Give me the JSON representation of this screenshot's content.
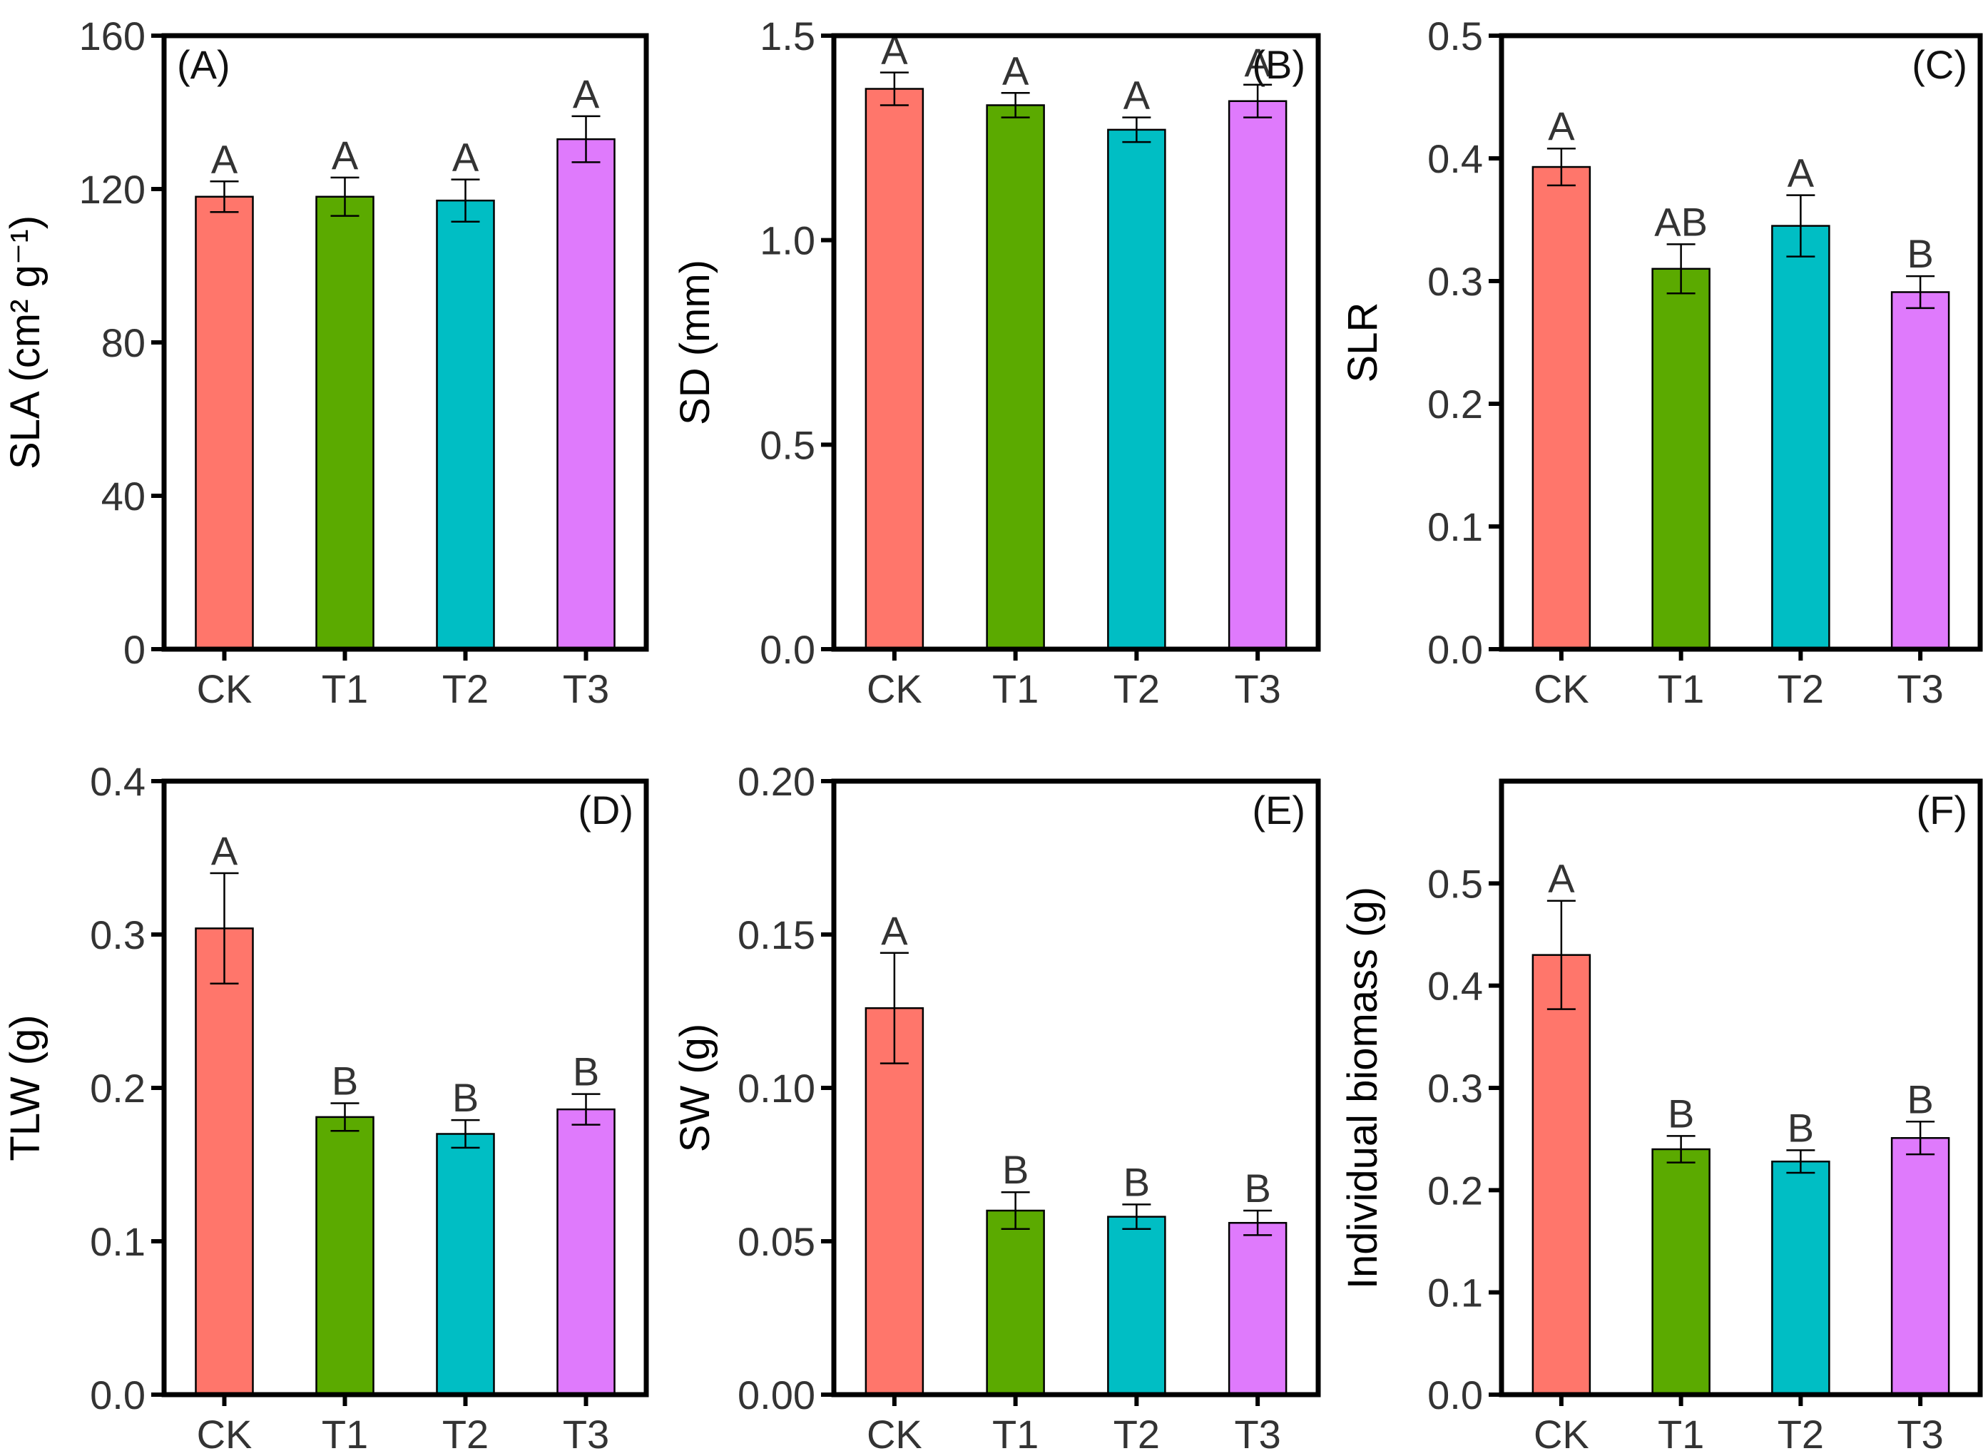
{
  "colors": {
    "CK": "#FF766B",
    "T1": "#5BAA00",
    "T2": "#00BEC4",
    "T3": "#DF7AFC"
  },
  "chart_data": [
    {
      "id": "A",
      "type": "bar",
      "panel_label": "(A)",
      "ylabel": "SLA (cm² g⁻¹)",
      "xlabel": "",
      "categories": [
        "CK",
        "T1",
        "T2",
        "T3"
      ],
      "values": [
        118,
        118,
        117,
        133
      ],
      "errors": [
        4,
        5,
        5.5,
        6
      ],
      "significance": [
        "A",
        "A",
        "A",
        "A"
      ],
      "ylim": [
        0,
        160
      ],
      "yticks": [
        0,
        40,
        80,
        120,
        160
      ],
      "ytick_labels": [
        "0",
        "40",
        "80",
        "120",
        "160"
      ],
      "tag_position": "top-left"
    },
    {
      "id": "B",
      "type": "bar",
      "panel_label": "(B)",
      "ylabel": "SD (mm)",
      "xlabel": "",
      "categories": [
        "CK",
        "T1",
        "T2",
        "T3"
      ],
      "values": [
        1.37,
        1.33,
        1.27,
        1.34
      ],
      "errors": [
        0.04,
        0.03,
        0.03,
        0.04
      ],
      "significance": [
        "A",
        "A",
        "A",
        "A"
      ],
      "ylim": [
        0,
        1.5
      ],
      "yticks": [
        0,
        0.5,
        1.0,
        1.5
      ],
      "ytick_labels": [
        "0.0",
        "0.5",
        "1.0",
        "1.5"
      ],
      "tag_position": "top-right"
    },
    {
      "id": "C",
      "type": "bar",
      "panel_label": "(C)",
      "ylabel": "SLR",
      "xlabel": "",
      "categories": [
        "CK",
        "T1",
        "T2",
        "T3"
      ],
      "values": [
        0.393,
        0.31,
        0.345,
        0.291
      ],
      "errors": [
        0.015,
        0.02,
        0.025,
        0.013
      ],
      "significance": [
        "A",
        "AB",
        "A",
        "B"
      ],
      "ylim": [
        0,
        0.5
      ],
      "yticks": [
        0,
        0.1,
        0.2,
        0.3,
        0.4,
        0.5
      ],
      "ytick_labels": [
        "0.0",
        "0.1",
        "0.2",
        "0.3",
        "0.4",
        "0.5"
      ],
      "tag_position": "top-right"
    },
    {
      "id": "D",
      "type": "bar",
      "panel_label": "(D)",
      "ylabel": "TLW (g)",
      "xlabel": "",
      "categories": [
        "CK",
        "T1",
        "T2",
        "T3"
      ],
      "values": [
        0.304,
        0.181,
        0.17,
        0.186
      ],
      "errors": [
        0.036,
        0.009,
        0.009,
        0.01
      ],
      "significance": [
        "A",
        "B",
        "B",
        "B"
      ],
      "ylim": [
        0,
        0.4
      ],
      "yticks": [
        0,
        0.1,
        0.2,
        0.3,
        0.4
      ],
      "ytick_labels": [
        "0.0",
        "0.1",
        "0.2",
        "0.3",
        "0.4"
      ],
      "tag_position": "top-right"
    },
    {
      "id": "E",
      "type": "bar",
      "panel_label": "(E)",
      "ylabel": "SW (g)",
      "xlabel": "",
      "categories": [
        "CK",
        "T1",
        "T2",
        "T3"
      ],
      "values": [
        0.126,
        0.06,
        0.058,
        0.056
      ],
      "errors": [
        0.018,
        0.006,
        0.004,
        0.004
      ],
      "significance": [
        "A",
        "B",
        "B",
        "B"
      ],
      "ylim": [
        0,
        0.2
      ],
      "yticks": [
        0,
        0.05,
        0.1,
        0.15,
        0.2
      ],
      "ytick_labels": [
        "0.00",
        "0.05",
        "0.10",
        "0.15",
        "0.20"
      ],
      "tag_position": "top-right"
    },
    {
      "id": "F",
      "type": "bar",
      "panel_label": "(F)",
      "ylabel": "Individual biomass (g)",
      "xlabel": "",
      "categories": [
        "CK",
        "T1",
        "T2",
        "T3"
      ],
      "values": [
        0.43,
        0.24,
        0.228,
        0.251
      ],
      "errors": [
        0.053,
        0.013,
        0.011,
        0.016
      ],
      "significance": [
        "A",
        "B",
        "B",
        "B"
      ],
      "ylim": [
        0,
        0.6
      ],
      "yticks": [
        0,
        0.1,
        0.2,
        0.3,
        0.4,
        0.5
      ],
      "ytick_labels": [
        "0.0",
        "0.1",
        "0.2",
        "0.3",
        "0.4",
        "0.5"
      ],
      "tag_position": "top-right"
    }
  ]
}
